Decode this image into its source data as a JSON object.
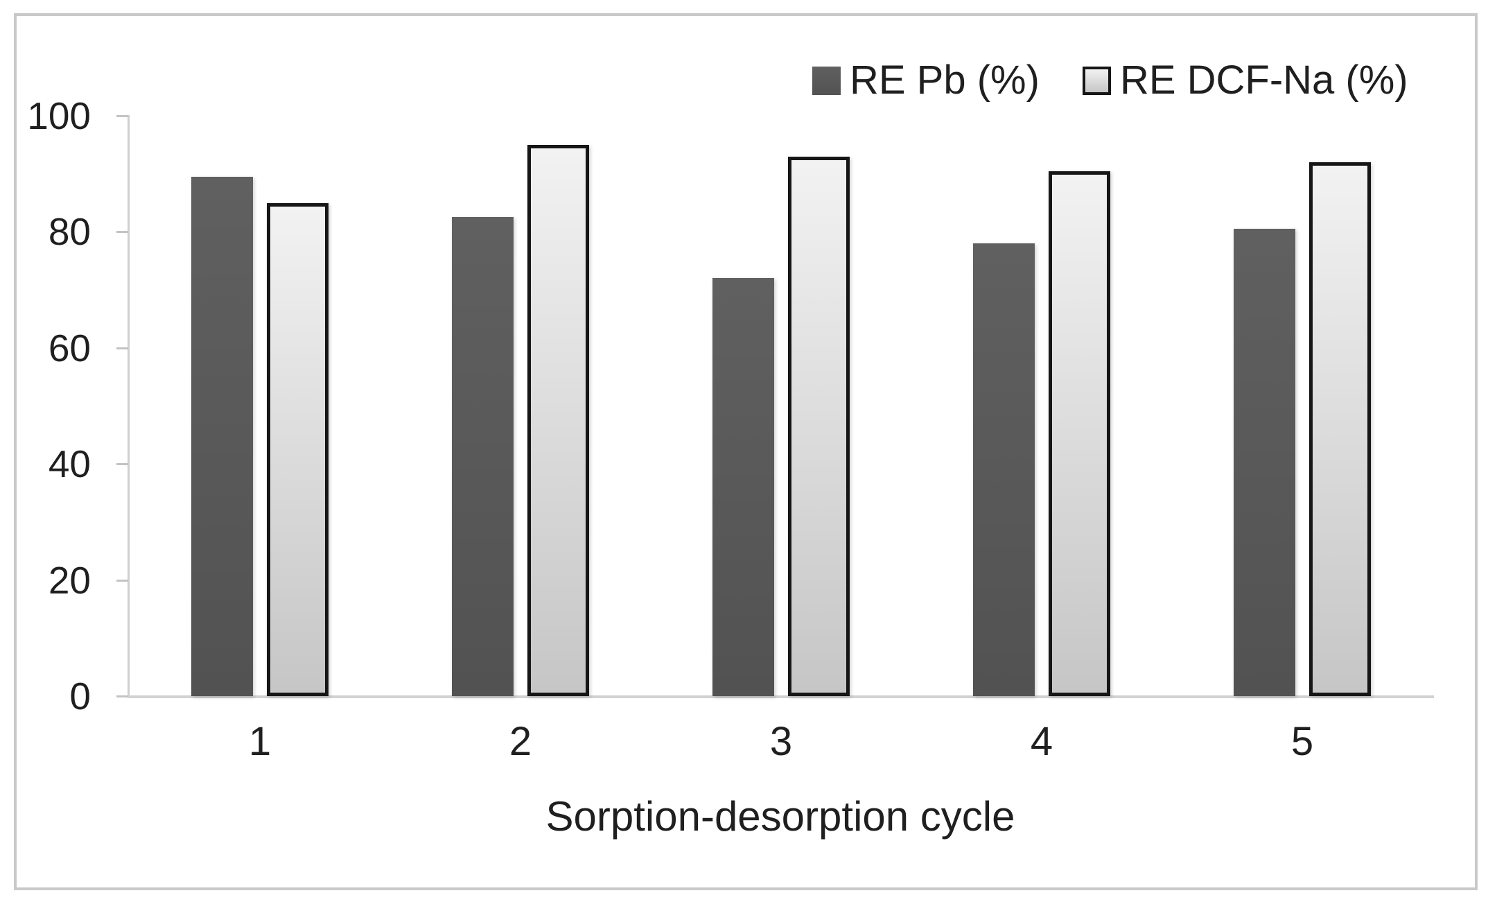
{
  "chart_data": {
    "type": "bar",
    "title": "",
    "xlabel": "Sorption-desorption cycle",
    "ylabel": "",
    "categories": [
      "1",
      "2",
      "3",
      "4",
      "5"
    ],
    "series": [
      {
        "name": "RE Pb (%)",
        "values": [
          89.5,
          82.5,
          72,
          78,
          80.5
        ],
        "fill_top": "#606060",
        "fill_bottom": "#525252",
        "border": null
      },
      {
        "name": "RE DCF-Na (%)",
        "values": [
          85,
          95,
          93,
          90.5,
          92
        ],
        "fill_top": "#f2f2f2",
        "fill_bottom": "#c6c6c6",
        "border": "#161616"
      }
    ],
    "ylim": [
      0,
      100
    ],
    "yticks": [
      0,
      20,
      40,
      60,
      80,
      100
    ],
    "grid": false,
    "legend_position": "top-right",
    "legend_entries": [
      "RE Pb (%)",
      "RE DCF-Na (%)"
    ]
  },
  "colors": {
    "background": "#ffffff",
    "frame_border": "#c9c9c9",
    "axis_line": "#cfcfcf",
    "tick_mark": "#c3c3c3",
    "text": "#1f1f1f"
  }
}
